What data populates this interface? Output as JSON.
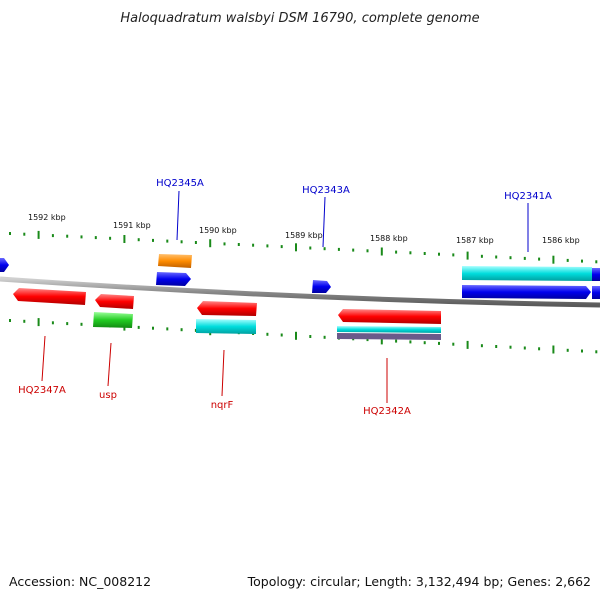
{
  "title": "Haloquadratum walsbyi DSM 16790, complete genome",
  "footer": {
    "accession": "Accession: NC_008212",
    "stats": "Topology: circular; Length: 3,132,494 bp; Genes: 2,662"
  },
  "colors": {
    "backbone": "#8a8a8a",
    "tick": "#1a8a1a",
    "forward_label": "#0000cc",
    "reverse_label": "#cc0000",
    "red": "#ff0000",
    "blue": "#0000ee",
    "orange": "#ff8c00",
    "cyan": "#00cccc",
    "green": "#22bb22",
    "purple": "#6a5a8a"
  },
  "coordinate_labels": [
    "1592 kbp",
    "1591 kbp",
    "1590 kbp",
    "1589 kbp",
    "1588 kbp",
    "1587 kbp",
    "1586 kbp"
  ],
  "forward_genes": [
    {
      "name": "HQ2345A"
    },
    {
      "name": "HQ2343A"
    },
    {
      "name": "HQ2341A"
    }
  ],
  "reverse_genes": [
    {
      "name": "HQ2347A"
    },
    {
      "name": "usp"
    },
    {
      "name": "nqrF"
    },
    {
      "name": "HQ2342A"
    }
  ]
}
